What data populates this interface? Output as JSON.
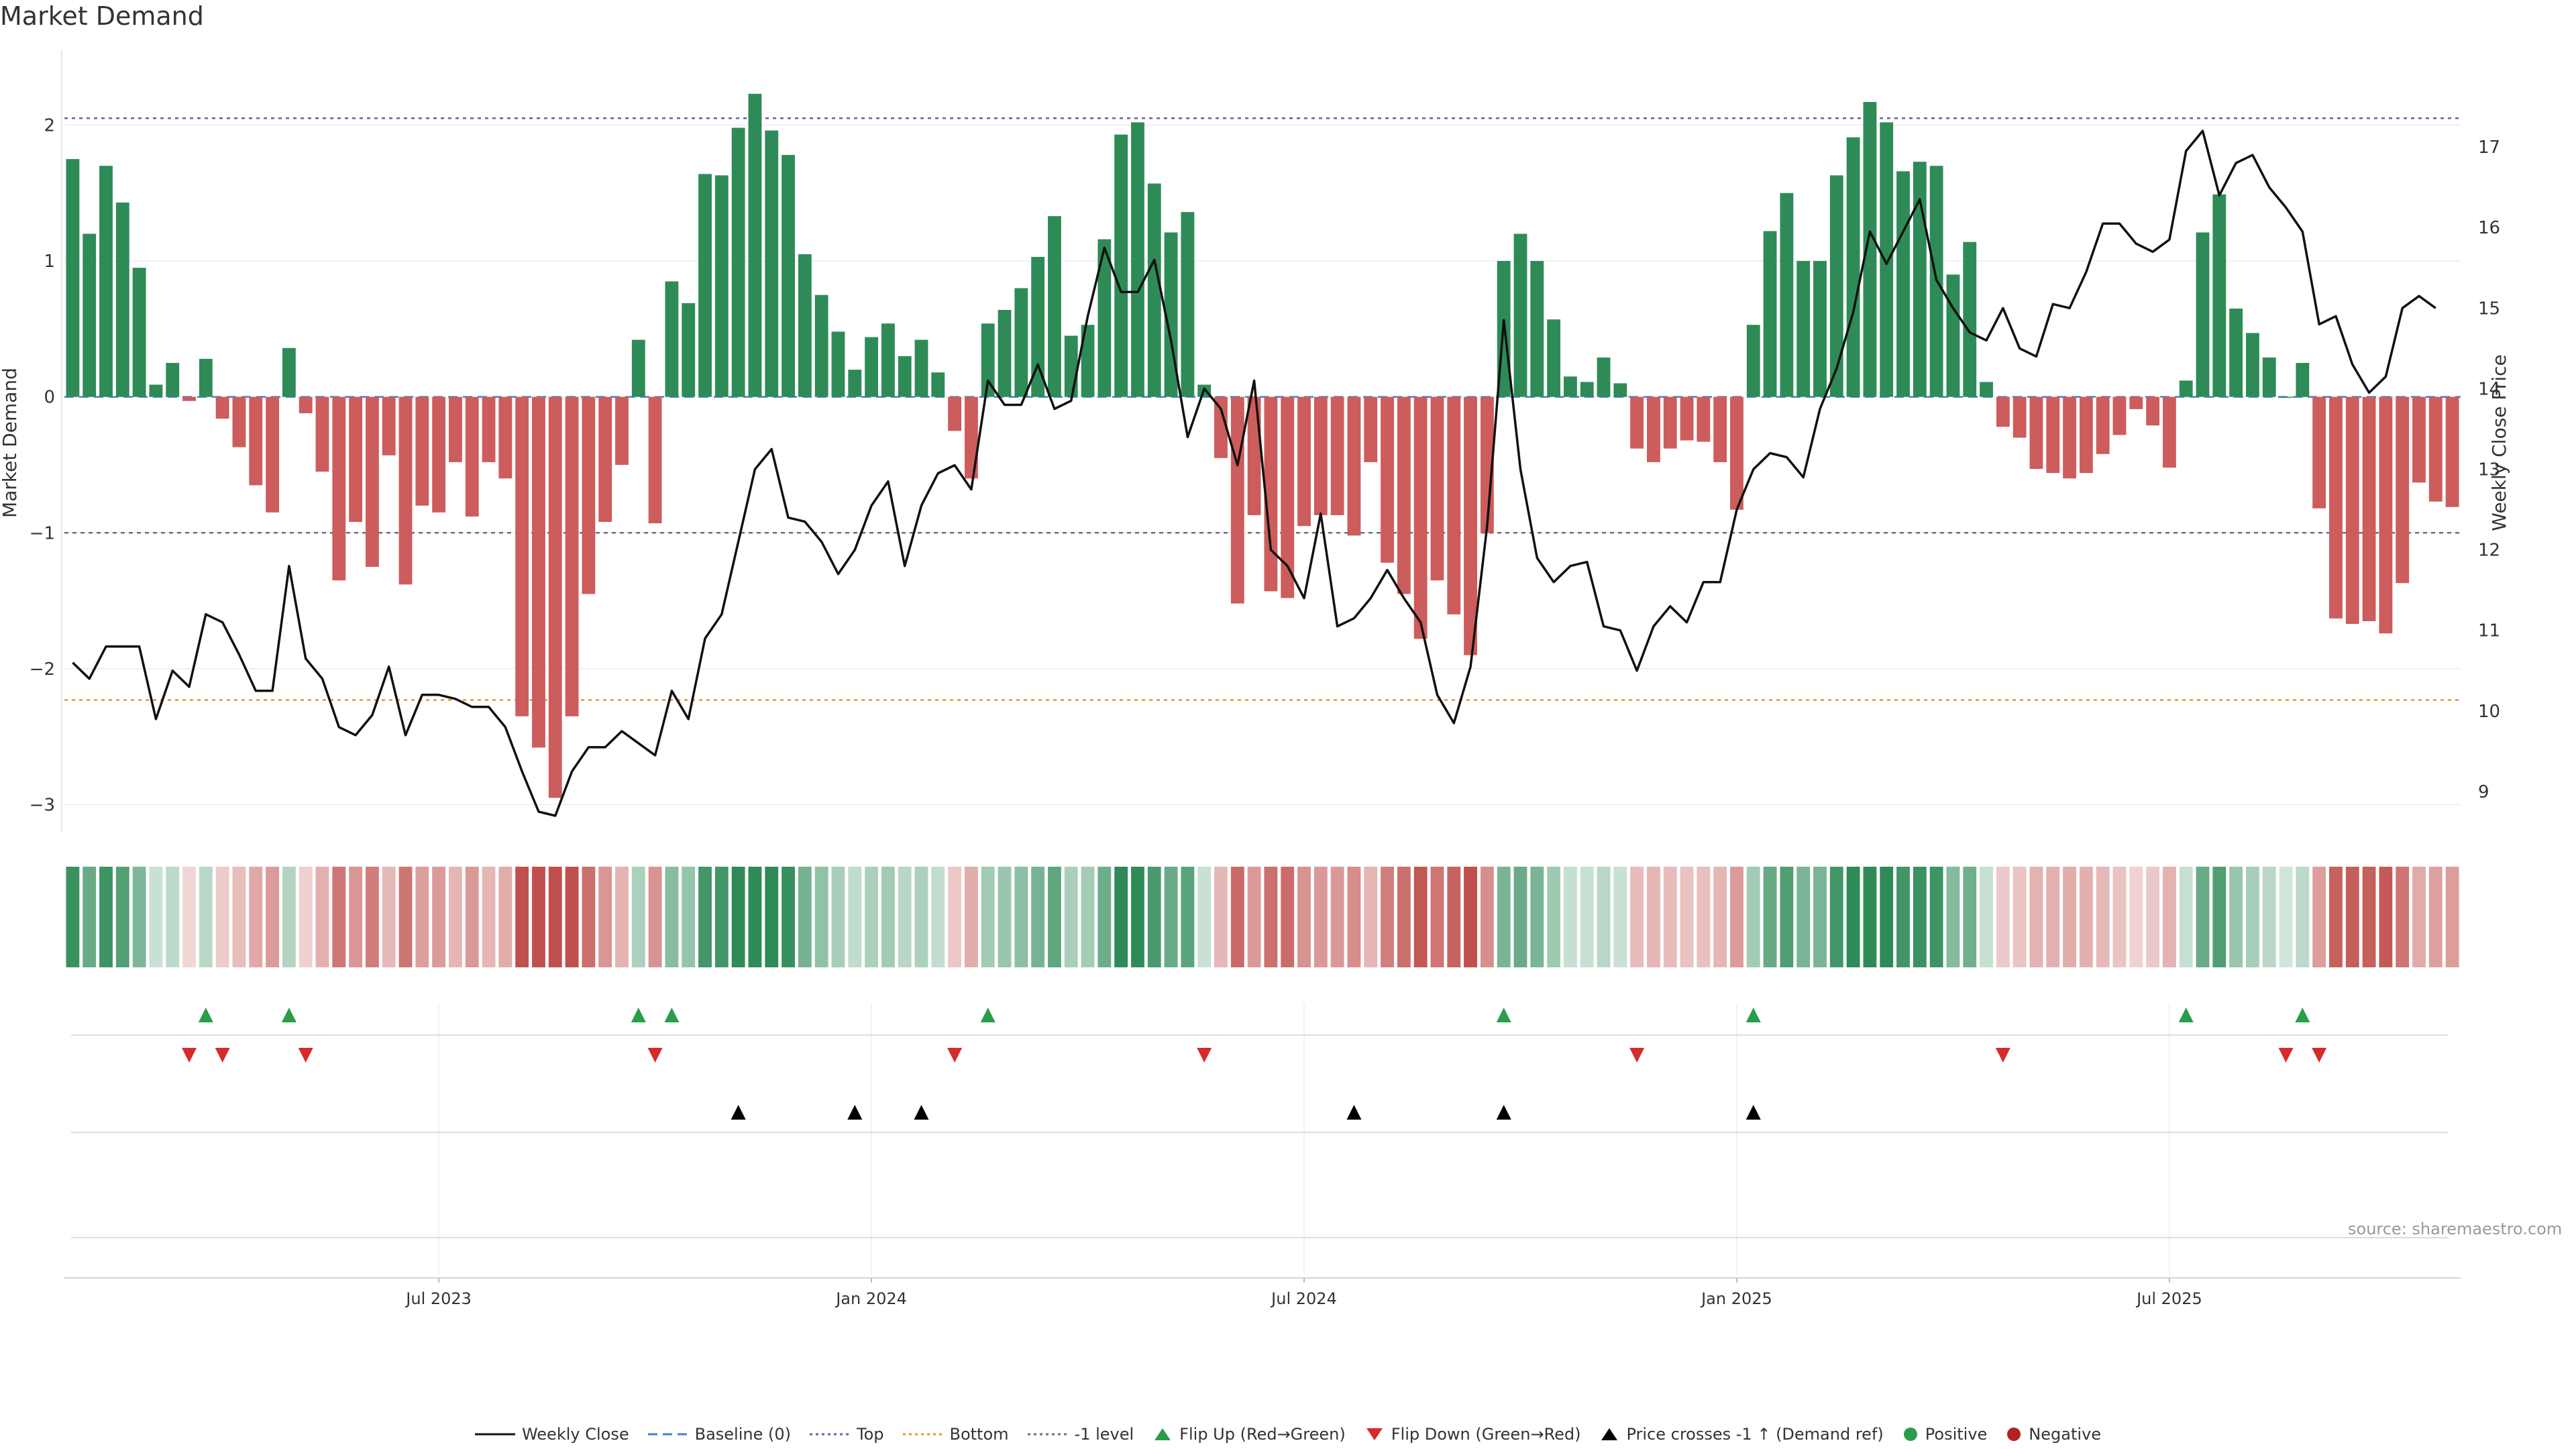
{
  "title": "Market Demand",
  "source": "source: sharemaestro.com",
  "colors": {
    "positive": "#2e8b57",
    "negative": "#cd5c5c",
    "price": "#111111",
    "top_line": "#6b5fa8",
    "bottom_line": "#e09a2b",
    "minus1_line": "#6b6b8a",
    "flip_up": "#2a9d4a",
    "flip_down": "#d62b2b",
    "cross": "#000000"
  },
  "legend": [
    {
      "label": "Weekly Close",
      "icon": "solid-line-icon"
    },
    {
      "label": "Baseline (0)",
      "icon": "dashed-line-icon"
    },
    {
      "label": "Top",
      "icon": "dotted-line-icon"
    },
    {
      "label": "Bottom",
      "icon": "dotted-orange-line-icon"
    },
    {
      "label": "-1 level",
      "icon": "dotted-gray-line-icon"
    },
    {
      "label": "Flip Up (Red→Green)",
      "icon": "triangle-up-green-icon"
    },
    {
      "label": "Flip Down (Green→Red)",
      "icon": "triangle-down-red-icon"
    },
    {
      "label": "Price crosses -1 ↑ (Demand ref)",
      "icon": "triangle-up-black-icon"
    },
    {
      "label": "Positive",
      "icon": "green-dot-icon"
    },
    {
      "label": "Negative",
      "icon": "red-dot-icon"
    }
  ],
  "chart_data": {
    "type": "bar",
    "ylabel": "Market Demand",
    "y2label": "Weekly Close Price",
    "ylim": [
      -3.2,
      2.55
    ],
    "y2lim": [
      8.5,
      18.2
    ],
    "yticks": [
      2,
      1,
      0,
      -1,
      -2,
      -3
    ],
    "ytick_labels": [
      "2",
      "1",
      "0",
      "−1",
      "−2",
      "−3"
    ],
    "y2ticks": [
      17,
      16,
      15,
      14,
      13,
      12,
      11,
      10,
      9
    ],
    "top_level": 2.05,
    "bottom_level": -2.23,
    "minus1_level": -1,
    "xticks": [
      22,
      48,
      74,
      100,
      126
    ],
    "xtick_labels": [
      "Jul 2023",
      "Jan 2024",
      "Jul 2024",
      "Jan 2025",
      "Jul 2025"
    ],
    "demand": [
      1.75,
      1.2,
      1.7,
      1.43,
      0.95,
      0.09,
      0.25,
      -0.03,
      0.28,
      -0.16,
      -0.37,
      -0.65,
      -0.85,
      0.36,
      -0.12,
      -0.55,
      -1.35,
      -0.92,
      -1.25,
      -0.43,
      -1.38,
      -0.8,
      -0.85,
      -0.48,
      -0.88,
      -0.48,
      -0.6,
      -2.35,
      -2.58,
      -2.95,
      -2.35,
      -1.45,
      -0.92,
      -0.5,
      0.42,
      -0.93,
      0.85,
      0.69,
      1.64,
      1.63,
      1.98,
      2.23,
      1.96,
      1.78,
      1.05,
      0.75,
      0.48,
      0.2,
      0.44,
      0.54,
      0.3,
      0.42,
      0.18,
      -0.25,
      -0.6,
      0.54,
      0.64,
      0.8,
      1.03,
      1.33,
      0.45,
      0.53,
      1.16,
      1.93,
      2.02,
      1.57,
      1.21,
      1.36,
      0.09,
      -0.45,
      -1.52,
      -0.87,
      -1.43,
      -1.48,
      -0.95,
      -0.87,
      -0.87,
      -1.02,
      -0.48,
      -1.22,
      -1.45,
      -1.78,
      -1.35,
      -1.6,
      -1.9,
      -1.0,
      1.0,
      1.2,
      1.0,
      0.57,
      0.15,
      0.11,
      0.29,
      0.1,
      -0.38,
      -0.48,
      -0.38,
      -0.32,
      -0.33,
      -0.48,
      -0.83,
      0.53,
      1.22,
      1.5,
      1.0,
      1.0,
      1.63,
      1.91,
      2.17,
      2.02,
      1.66,
      1.73,
      1.7,
      0.9,
      1.14,
      0.11,
      -0.22,
      -0.3,
      -0.53,
      -0.56,
      -0.6,
      -0.56,
      -0.42,
      -0.28,
      -0.09,
      -0.21,
      -0.52,
      0.12,
      1.21,
      1.49,
      0.65,
      0.47,
      0.29,
      0.0,
      0.25,
      -0.82,
      -1.63,
      -1.67,
      -1.65,
      -1.74,
      -1.37,
      -0.63,
      -0.77,
      -0.81
    ],
    "price": [
      10.6,
      10.4,
      10.8,
      10.8,
      10.8,
      9.9,
      10.5,
      10.3,
      11.2,
      11.1,
      10.7,
      10.25,
      10.25,
      11.8,
      10.65,
      10.4,
      9.8,
      9.7,
      9.95,
      10.55,
      9.7,
      10.2,
      10.2,
      10.15,
      10.05,
      10.05,
      9.8,
      9.25,
      8.75,
      8.7,
      9.25,
      9.55,
      9.55,
      9.75,
      9.6,
      9.45,
      10.25,
      9.9,
      10.9,
      11.2,
      12.1,
      13.0,
      13.25,
      12.4,
      12.35,
      12.1,
      11.7,
      12.0,
      12.55,
      12.85,
      11.8,
      12.55,
      12.95,
      13.05,
      12.75,
      14.1,
      13.8,
      13.8,
      14.3,
      13.75,
      13.85,
      14.9,
      15.75,
      15.2,
      15.2,
      15.6,
      14.6,
      13.4,
      14.0,
      13.75,
      13.05,
      14.1,
      12.0,
      11.8,
      11.4,
      12.45,
      11.05,
      11.15,
      11.4,
      11.75,
      11.4,
      11.1,
      10.2,
      9.85,
      10.55,
      12.3,
      14.85,
      13.0,
      11.9,
      11.6,
      11.8,
      11.85,
      11.05,
      11.0,
      10.5,
      11.05,
      11.3,
      11.1,
      11.6,
      11.6,
      12.5,
      13.0,
      13.2,
      13.15,
      12.9,
      13.75,
      14.25,
      14.95,
      15.95,
      15.55,
      15.95,
      16.35,
      15.35,
      15.0,
      14.7,
      14.6,
      15.0,
      14.5,
      14.4,
      15.05,
      15.0,
      15.45,
      16.05,
      16.05,
      15.8,
      15.7,
      15.85,
      16.95,
      17.2,
      16.4,
      16.8,
      16.9,
      16.5,
      16.25,
      15.95,
      14.8,
      14.9,
      14.3,
      13.95,
      14.15,
      15.0,
      15.15,
      15.0
    ],
    "flip_up": [
      8,
      13,
      34,
      36,
      55,
      86,
      101,
      127,
      134
    ],
    "flip_down": [
      7,
      9,
      14,
      35,
      53,
      68,
      94,
      116,
      133,
      135
    ],
    "price_cross": [
      40,
      47,
      51,
      77,
      86,
      101
    ]
  }
}
